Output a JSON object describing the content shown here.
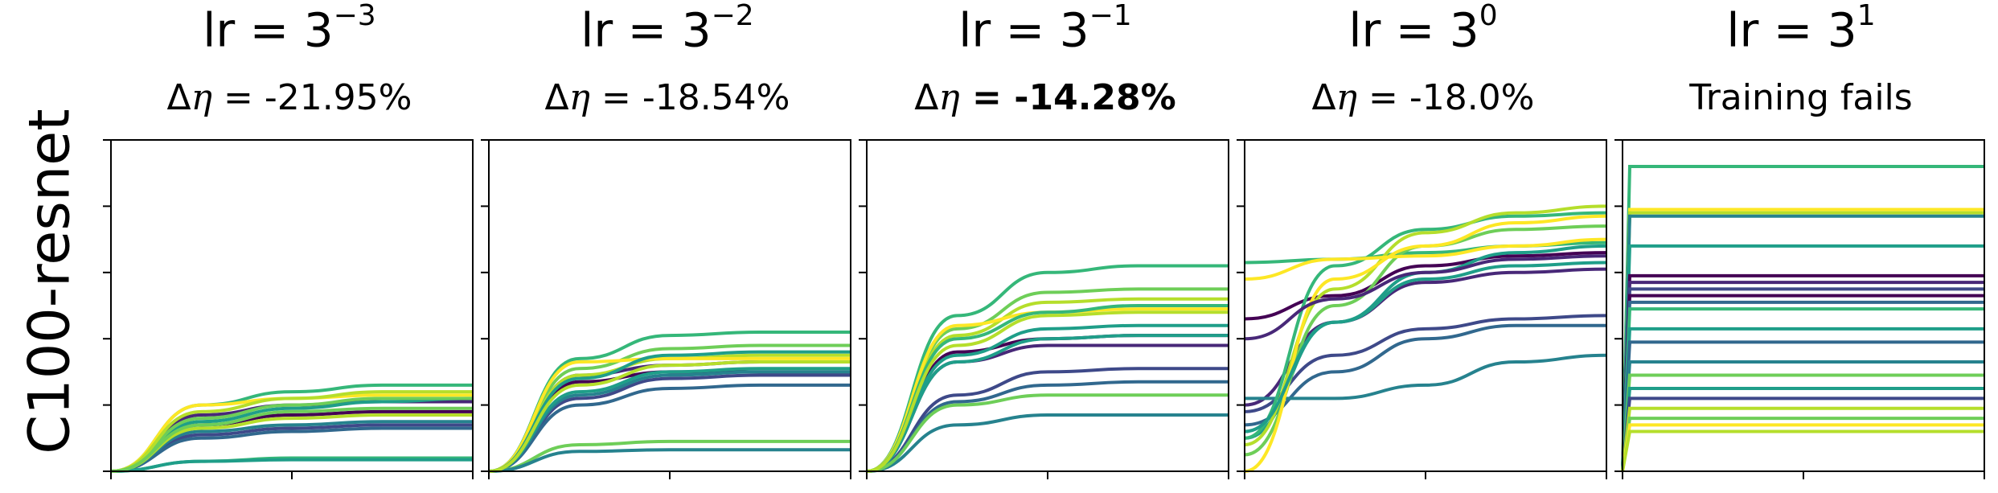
{
  "row_label": "C100-resnet",
  "colors": {
    "viridis": [
      "#440154",
      "#482878",
      "#3e4989",
      "#31688e",
      "#26828e",
      "#1f9e89",
      "#35b779",
      "#6ece58",
      "#b5de2b",
      "#fde725"
    ]
  },
  "panels": [
    {
      "title_base": "lr = 3",
      "title_exp": "−3",
      "delta_prefix": "Δ",
      "delta_symbol": "η",
      "delta_value": " = -21.95%",
      "bold": false
    },
    {
      "title_base": "lr = 3",
      "title_exp": "−2",
      "delta_prefix": "Δ",
      "delta_symbol": "η",
      "delta_value": " = -18.54%",
      "bold": false
    },
    {
      "title_base": "lr = 3",
      "title_exp": "−1",
      "delta_prefix": "Δ",
      "delta_symbol": "η",
      "delta_value": " = -14.28%",
      "bold": true
    },
    {
      "title_base": "lr = 3",
      "title_exp": "0",
      "delta_prefix": "Δ",
      "delta_symbol": "η",
      "delta_value": " = -18.0%",
      "bold": false
    },
    {
      "title_base": "lr = 3",
      "title_exp": "1",
      "delta_prefix": "",
      "delta_symbol": "",
      "delta_value": "Training fails",
      "bold": false
    }
  ],
  "chart_data": [
    {
      "type": "line",
      "ylim": [
        0,
        1
      ],
      "xlim": [
        0,
        1
      ],
      "series": [
        {
          "color": "#440154",
          "values": [
            0,
            0.14,
            0.17,
            0.18,
            0.18
          ]
        },
        {
          "color": "#482878",
          "values": [
            0,
            0.17,
            0.2,
            0.21,
            0.21
          ]
        },
        {
          "color": "#3e4989",
          "values": [
            0,
            0.11,
            0.13,
            0.14,
            0.14
          ]
        },
        {
          "color": "#31688e",
          "values": [
            0,
            0.1,
            0.12,
            0.13,
            0.13
          ]
        },
        {
          "color": "#26828e",
          "values": [
            0,
            0.12,
            0.14,
            0.15,
            0.15
          ]
        },
        {
          "color": "#1f9e89",
          "values": [
            0,
            0.15,
            0.19,
            0.21,
            0.22
          ]
        },
        {
          "color": "#35b779",
          "values": [
            0,
            0.2,
            0.24,
            0.26,
            0.26
          ]
        },
        {
          "color": "#6ece58",
          "values": [
            0,
            0.16,
            0.2,
            0.22,
            0.22
          ]
        },
        {
          "color": "#b5de2b",
          "values": [
            0,
            0.13,
            0.16,
            0.17,
            0.17
          ]
        },
        {
          "color": "#fde725",
          "values": [
            0,
            0.2,
            0.22,
            0.23,
            0.23
          ]
        },
        {
          "color": "#35b779",
          "values": [
            0,
            0.03,
            0.04,
            0.04,
            0.04
          ]
        },
        {
          "color": "#1f9e89",
          "values": [
            0,
            0.03,
            0.035,
            0.035,
            0.035
          ]
        },
        {
          "color": "#b5de2b",
          "values": [
            0,
            0.18,
            0.22,
            0.24,
            0.24
          ]
        },
        {
          "color": "#6ece58",
          "values": [
            0,
            0.14,
            0.18,
            0.19,
            0.19
          ]
        }
      ]
    },
    {
      "type": "line",
      "ylim": [
        0,
        1
      ],
      "xlim": [
        0,
        1
      ],
      "series": [
        {
          "color": "#440154",
          "values": [
            0,
            0.27,
            0.3,
            0.3,
            0.3
          ]
        },
        {
          "color": "#482878",
          "values": [
            0,
            0.29,
            0.32,
            0.33,
            0.33
          ]
        },
        {
          "color": "#3e4989",
          "values": [
            0,
            0.22,
            0.28,
            0.29,
            0.29
          ]
        },
        {
          "color": "#31688e",
          "values": [
            0,
            0.2,
            0.25,
            0.26,
            0.26
          ]
        },
        {
          "color": "#26828e",
          "values": [
            0,
            0.23,
            0.29,
            0.3,
            0.3
          ]
        },
        {
          "color": "#1f9e89",
          "values": [
            0,
            0.24,
            0.3,
            0.31,
            0.31
          ]
        },
        {
          "color": "#35b779",
          "values": [
            0,
            0.34,
            0.41,
            0.42,
            0.42
          ]
        },
        {
          "color": "#6ece58",
          "values": [
            0,
            0.31,
            0.37,
            0.38,
            0.38
          ]
        },
        {
          "color": "#b5de2b",
          "values": [
            0,
            0.29,
            0.34,
            0.35,
            0.35
          ]
        },
        {
          "color": "#fde725",
          "values": [
            0,
            0.33,
            0.34,
            0.34,
            0.34
          ]
        },
        {
          "color": "#6ece58",
          "values": [
            0,
            0.08,
            0.09,
            0.09,
            0.09
          ]
        },
        {
          "color": "#26828e",
          "values": [
            0,
            0.06,
            0.065,
            0.065,
            0.065
          ]
        },
        {
          "color": "#1f9e89",
          "values": [
            0,
            0.28,
            0.35,
            0.36,
            0.36
          ]
        },
        {
          "color": "#b5de2b",
          "values": [
            0,
            0.26,
            0.32,
            0.33,
            0.33
          ]
        }
      ]
    },
    {
      "type": "line",
      "ylim": [
        0,
        1
      ],
      "xlim": [
        0,
        1
      ],
      "series": [
        {
          "color": "#440154",
          "values": [
            0,
            0.36,
            0.4,
            0.41,
            0.41
          ]
        },
        {
          "color": "#482878",
          "values": [
            0,
            0.33,
            0.38,
            0.38,
            0.38
          ]
        },
        {
          "color": "#3e4989",
          "values": [
            0,
            0.23,
            0.3,
            0.31,
            0.31
          ]
        },
        {
          "color": "#31688e",
          "values": [
            0,
            0.21,
            0.26,
            0.27,
            0.27
          ]
        },
        {
          "color": "#26828e",
          "values": [
            0,
            0.14,
            0.17,
            0.17,
            0.17
          ]
        },
        {
          "color": "#1f9e89",
          "values": [
            0,
            0.35,
            0.43,
            0.44,
            0.44
          ]
        },
        {
          "color": "#35b779",
          "values": [
            0,
            0.47,
            0.6,
            0.62,
            0.62
          ]
        },
        {
          "color": "#6ece58",
          "values": [
            0,
            0.43,
            0.54,
            0.55,
            0.55
          ]
        },
        {
          "color": "#b5de2b",
          "values": [
            0,
            0.41,
            0.51,
            0.52,
            0.52
          ]
        },
        {
          "color": "#fde725",
          "values": [
            0,
            0.44,
            0.48,
            0.49,
            0.49
          ]
        },
        {
          "color": "#1f9e89",
          "values": [
            0,
            0.33,
            0.4,
            0.41,
            0.41
          ]
        },
        {
          "color": "#6ece58",
          "values": [
            0,
            0.2,
            0.23,
            0.23,
            0.23
          ]
        },
        {
          "color": "#35b779",
          "values": [
            0,
            0.4,
            0.48,
            0.5,
            0.5
          ]
        },
        {
          "color": "#b5de2b",
          "values": [
            0,
            0.38,
            0.47,
            0.48,
            0.48
          ]
        }
      ]
    },
    {
      "type": "line",
      "ylim": [
        0,
        1
      ],
      "xlim": [
        0,
        1
      ],
      "series": [
        {
          "color": "#440154",
          "values": [
            0.46,
            0.53,
            0.62,
            0.65,
            0.66
          ]
        },
        {
          "color": "#482878",
          "values": [
            0.2,
            0.45,
            0.57,
            0.6,
            0.61
          ]
        },
        {
          "color": "#3e4989",
          "values": [
            0.18,
            0.35,
            0.43,
            0.46,
            0.47
          ]
        },
        {
          "color": "#31688e",
          "values": [
            0.14,
            0.3,
            0.4,
            0.44,
            0.44
          ]
        },
        {
          "color": "#26828e",
          "values": [
            0.22,
            0.22,
            0.26,
            0.33,
            0.35
          ]
        },
        {
          "color": "#1f9e89",
          "values": [
            0.1,
            0.45,
            0.58,
            0.62,
            0.63
          ]
        },
        {
          "color": "#35b779",
          "values": [
            0.1,
            0.62,
            0.73,
            0.77,
            0.78
          ]
        },
        {
          "color": "#35b779",
          "values": [
            0.63,
            0.64,
            0.66,
            0.68,
            0.69
          ]
        },
        {
          "color": "#6ece58",
          "values": [
            0.05,
            0.5,
            0.68,
            0.73,
            0.74
          ]
        },
        {
          "color": "#b5de2b",
          "values": [
            0.08,
            0.55,
            0.72,
            0.78,
            0.8
          ]
        },
        {
          "color": "#fde725",
          "values": [
            0.0,
            0.58,
            0.68,
            0.75,
            0.77
          ]
        },
        {
          "color": "#fde725",
          "values": [
            0.58,
            0.64,
            0.65,
            0.68,
            0.7
          ]
        },
        {
          "color": "#1f9e89",
          "values": [
            0.12,
            0.45,
            0.6,
            0.66,
            0.68
          ]
        },
        {
          "color": "#482878",
          "values": [
            0.4,
            0.52,
            0.6,
            0.64,
            0.65
          ]
        }
      ]
    },
    {
      "type": "line",
      "ylim": [
        0,
        1
      ],
      "xlim": [
        0,
        1
      ],
      "series": [
        {
          "color": "#35b779",
          "level": 0.92
        },
        {
          "color": "#fde725",
          "level": 0.79
        },
        {
          "color": "#b5de2b",
          "level": 0.78
        },
        {
          "color": "#26828e",
          "level": 0.77
        },
        {
          "color": "#1f9e89",
          "level": 0.68
        },
        {
          "color": "#440154",
          "level": 0.59
        },
        {
          "color": "#482878",
          "level": 0.57
        },
        {
          "color": "#3e4989",
          "level": 0.55
        },
        {
          "color": "#440154",
          "level": 0.53
        },
        {
          "color": "#31688e",
          "level": 0.51
        },
        {
          "color": "#35b779",
          "level": 0.49
        },
        {
          "color": "#1f9e89",
          "level": 0.43
        },
        {
          "color": "#31688e",
          "level": 0.39
        },
        {
          "color": "#26828e",
          "level": 0.33
        },
        {
          "color": "#6ece58",
          "level": 0.29
        },
        {
          "color": "#1f9e89",
          "level": 0.25
        },
        {
          "color": "#3e4989",
          "level": 0.22
        },
        {
          "color": "#b5de2b",
          "level": 0.19
        },
        {
          "color": "#6ece58",
          "level": 0.16
        },
        {
          "color": "#fde725",
          "level": 0.14
        },
        {
          "color": "#b5de2b",
          "level": 0.12
        }
      ]
    }
  ]
}
